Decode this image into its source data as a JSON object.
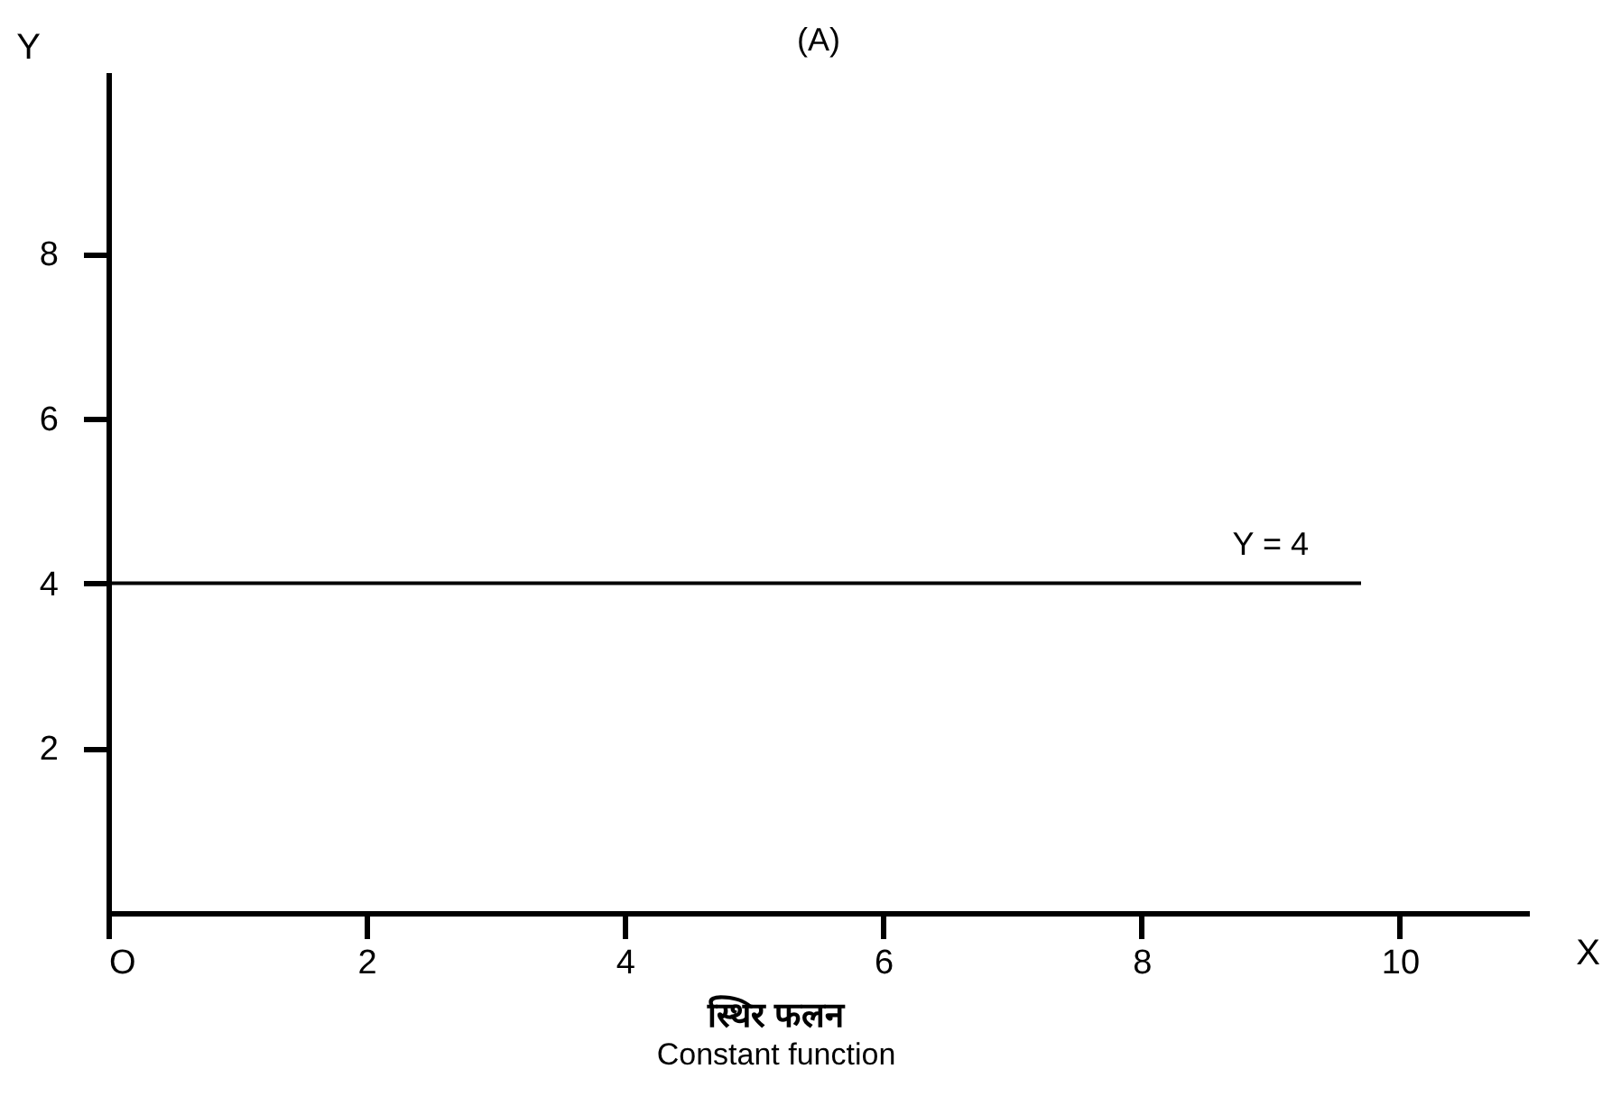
{
  "chart_data": {
    "type": "line",
    "title": "(A)",
    "xlabel": "X",
    "ylabel": "Y",
    "x": [
      0,
      9.7
    ],
    "series": [
      {
        "color": "#000000",
        "values": [
          4,
          4
        ]
      }
    ],
    "xlim": [
      0,
      11
    ],
    "ylim": [
      0,
      10.2
    ],
    "xticks": [
      {
        "value": 0,
        "label": "O"
      },
      2,
      4,
      6,
      8,
      10
    ],
    "yticks": [
      2,
      4,
      6,
      8
    ],
    "annotations": [
      {
        "text": "Y = 4",
        "x": 9,
        "y": 4
      },
      "स्थिर फलन",
      "Constant function"
    ],
    "grid": false
  }
}
